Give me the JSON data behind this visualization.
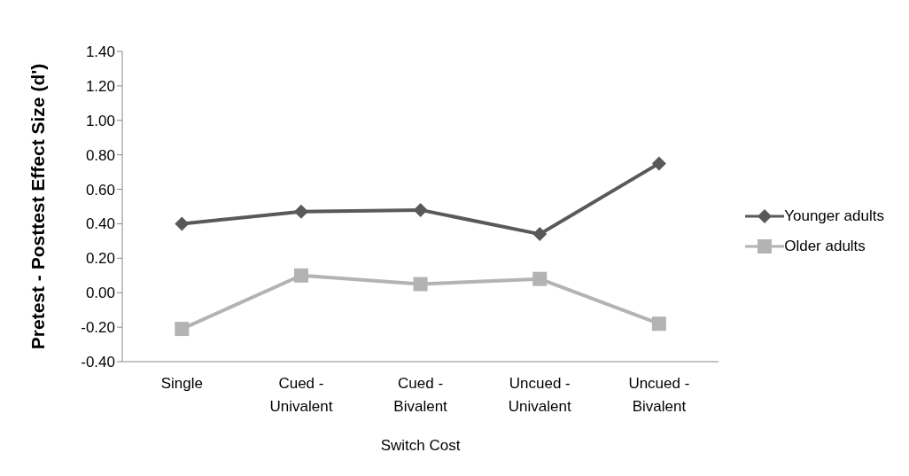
{
  "chart_data": {
    "type": "line",
    "ylabel": "Pretest - Posttest Effect Size (d')",
    "xlabel": "Switch Cost",
    "categories": [
      "Single",
      "Cued - Univalent",
      "Cued - Bivalent",
      "Uncued - Univalent",
      "Uncued - Bivalent"
    ],
    "series": [
      {
        "name": "Younger adults",
        "color": "#595959",
        "marker": "diamond",
        "values": [
          0.4,
          0.47,
          0.48,
          0.34,
          0.75
        ]
      },
      {
        "name": "Older adults",
        "color": "#b3b3b3",
        "marker": "square",
        "values": [
          -0.21,
          0.1,
          0.05,
          0.08,
          -0.18
        ]
      }
    ],
    "ylim": [
      -0.4,
      1.4
    ],
    "yticks": [
      {
        "value": -0.4,
        "label": "-0.40"
      },
      {
        "value": -0.2,
        "label": "-0.20"
      },
      {
        "value": 0,
        "label": "0.00"
      },
      {
        "value": 0.2,
        "label": "0.20"
      },
      {
        "value": 0.4,
        "label": "0.40"
      },
      {
        "value": 0.6,
        "label": "0.60"
      },
      {
        "value": 0.8,
        "label": "0.80"
      },
      {
        "value": 1.0,
        "label": "1.00"
      },
      {
        "value": 1.2,
        "label": "1.20"
      },
      {
        "value": 1.4,
        "label": "1.40"
      }
    ],
    "grid": false,
    "legend": "right"
  }
}
